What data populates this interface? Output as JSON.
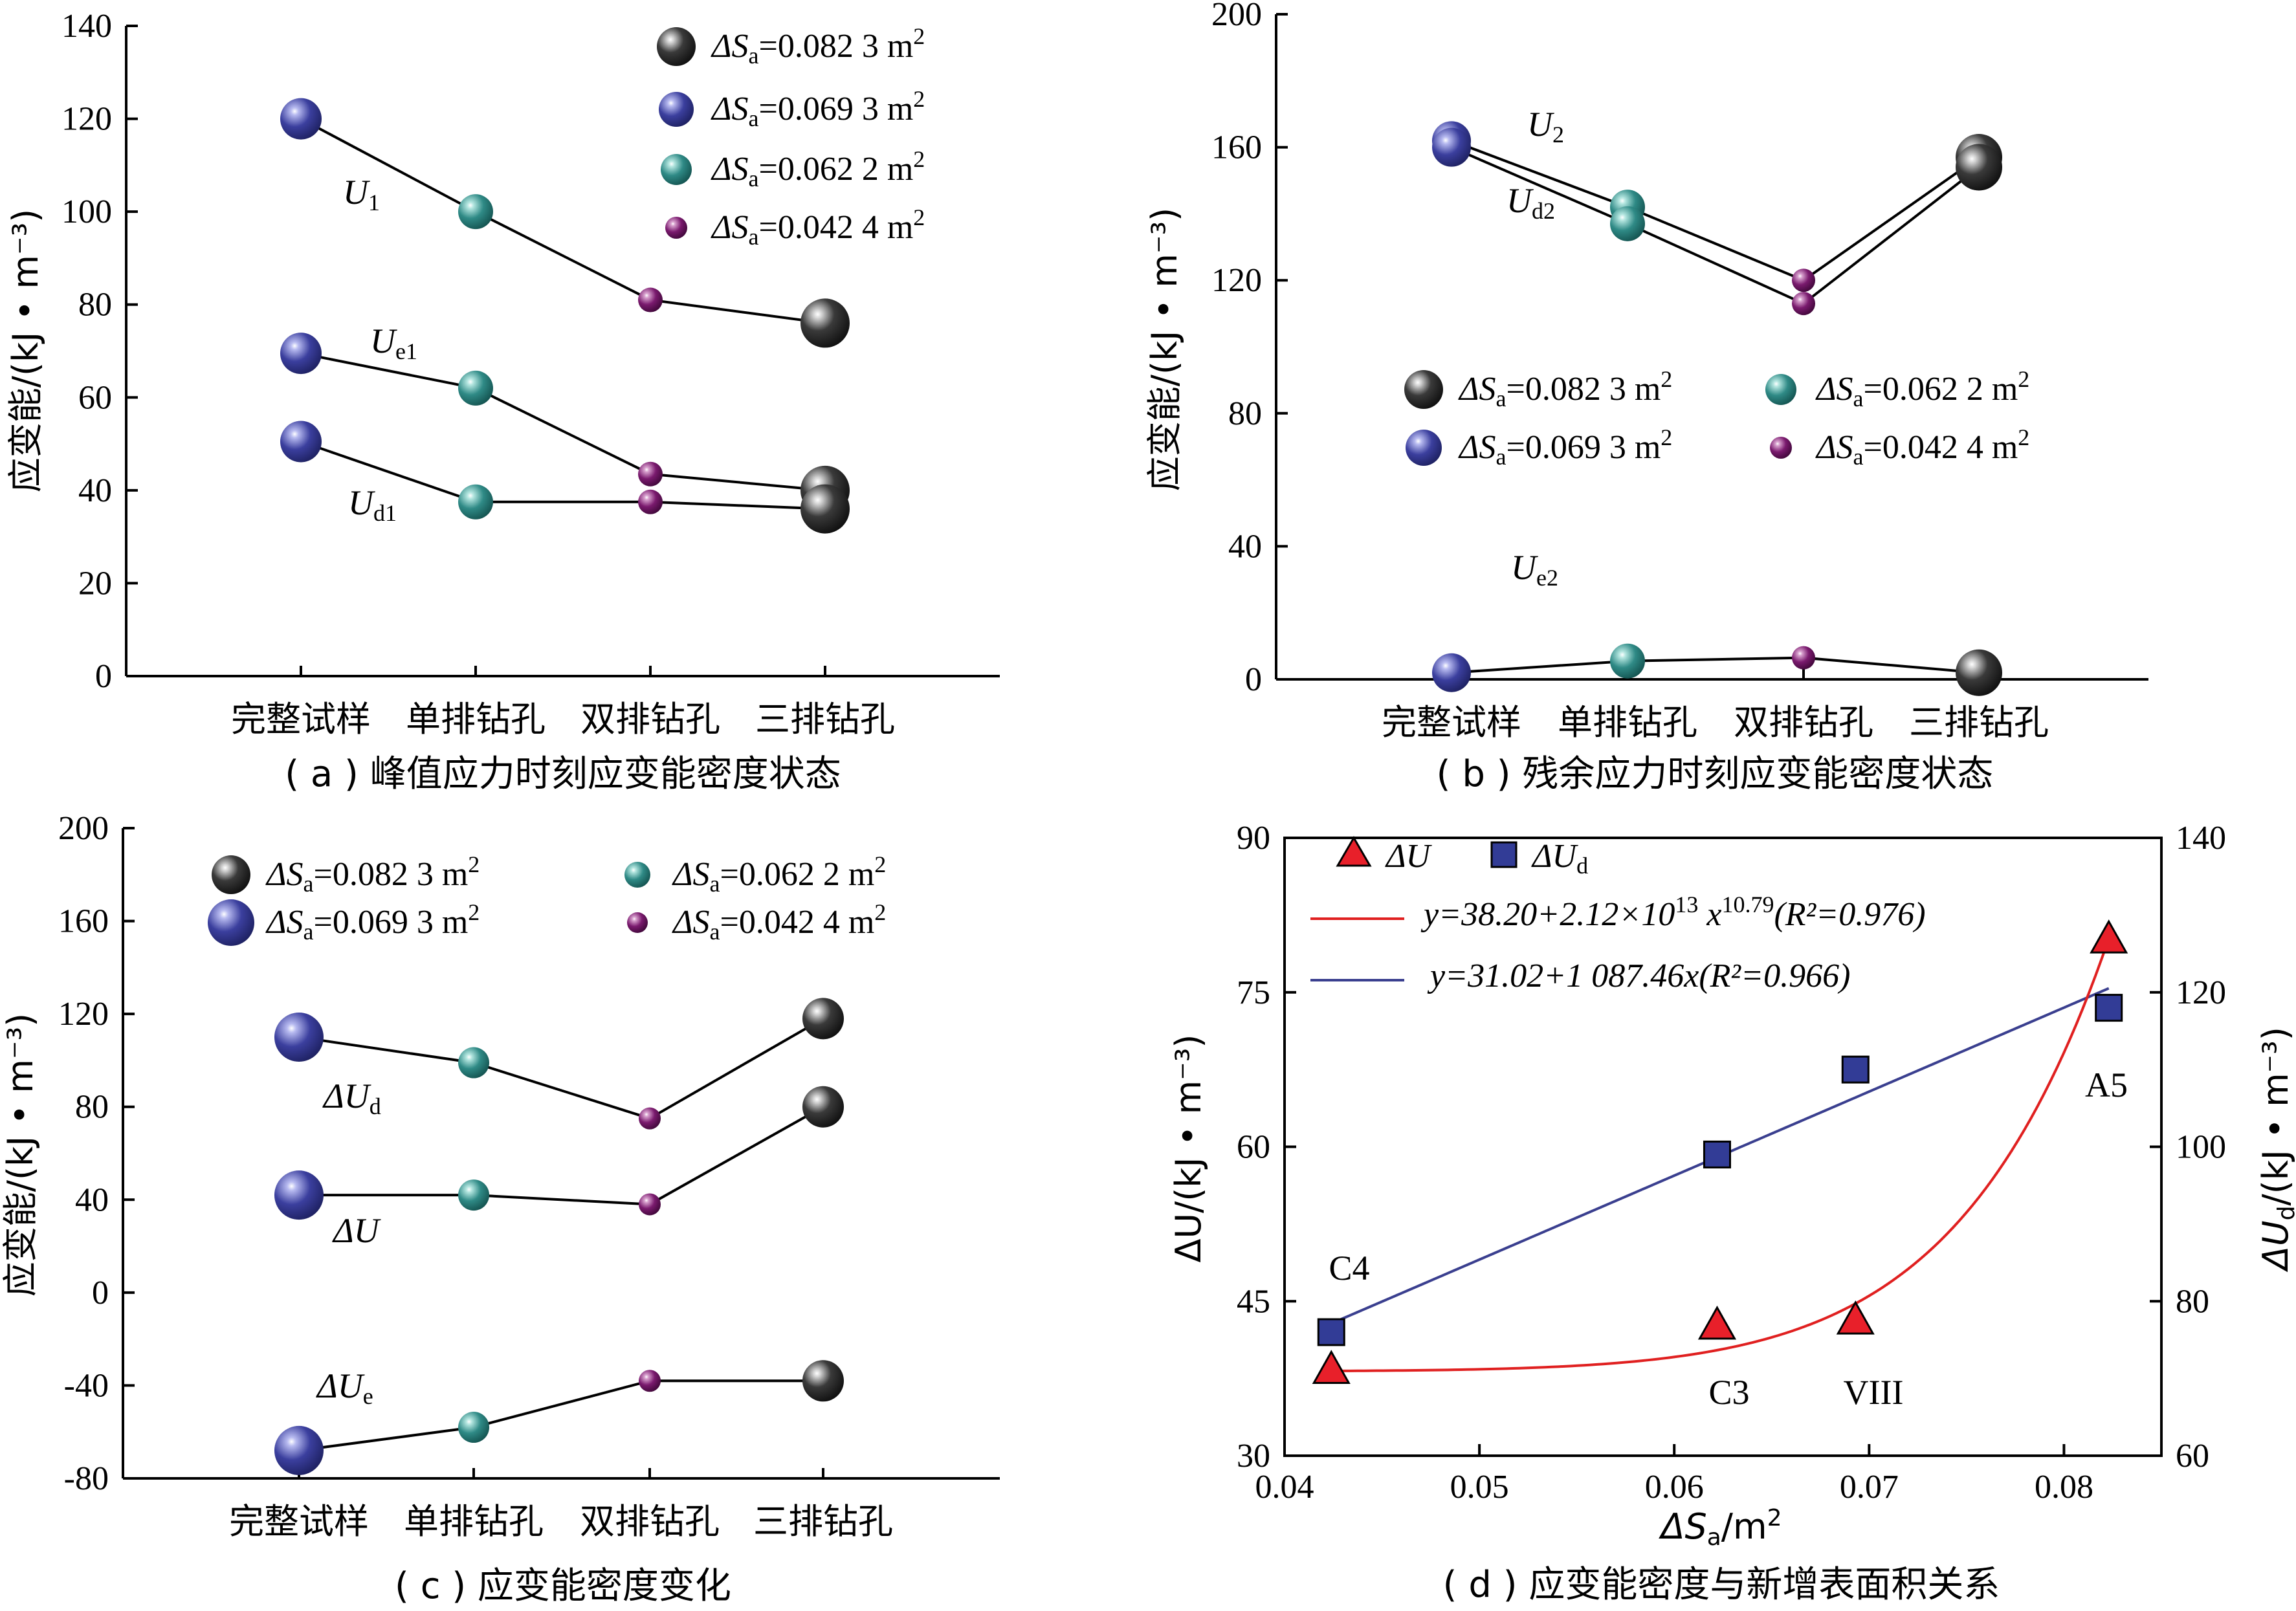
{
  "colors": {
    "dark": "#3a3a3a",
    "blue": "#3b3f9e",
    "teal": "#2f8a86",
    "purple": "#7a1a6e",
    "fit_red": "#e02020",
    "fit_blue": "#3a3f8f",
    "tri_red": "#e8202a",
    "sq_blue": "#323c96"
  },
  "legend_sizes": {
    "0.082 3": "large",
    "0.069 3": "medium-large",
    "0.062 2": "medium",
    "0.042 4": "small"
  },
  "chart_data": [
    {
      "id": "a",
      "type": "line",
      "caption": "( a ) 峰值应力时刻应变能密度状态",
      "ylabel": "应变能/(kJ • m⁻³)",
      "ylim": [
        0,
        140
      ],
      "yticks": [
        "0",
        "20",
        "40",
        "60",
        "80",
        "100",
        "120",
        "140"
      ],
      "categories": [
        "完整试样",
        "单排钻孔",
        "双排钻孔",
        "三排钻孔"
      ],
      "legend": [
        {
          "sym": "ΔS",
          "sub": "a",
          "text": "=0.082 3 m",
          "sup": "2",
          "key": "dark"
        },
        {
          "sym": "ΔS",
          "sub": "a",
          "text": "=0.069 3 m",
          "sup": "2",
          "key": "blue"
        },
        {
          "sym": "ΔS",
          "sub": "a",
          "text": "=0.062 2 m",
          "sup": "2",
          "key": "teal"
        },
        {
          "sym": "ΔS",
          "sub": "a",
          "text": "=0.042 4 m",
          "sup": "2",
          "key": "purple"
        }
      ],
      "series": [
        {
          "label": "U",
          "sub": "1",
          "values": [
            120,
            100,
            81,
            76
          ]
        },
        {
          "label": "U",
          "sub": "e1",
          "values": [
            69.5,
            62,
            43.5,
            40
          ]
        },
        {
          "label": "U",
          "sub": "d1",
          "values": [
            50.5,
            37.5,
            37.5,
            36
          ]
        }
      ]
    },
    {
      "id": "b",
      "type": "line",
      "caption": "( b ) 残余应力时刻应变能密度状态",
      "ylabel": "应变能/(kJ • m⁻³)",
      "ylim": [
        0,
        200
      ],
      "yticks": [
        "0",
        "40",
        "80",
        "120",
        "160",
        "200"
      ],
      "categories": [
        "完整试样",
        "单排钻孔",
        "双排钻孔",
        "三排钻孔"
      ],
      "legend": [
        {
          "sym": "ΔS",
          "sub": "a",
          "text": "=0.082 3 m",
          "sup": "2",
          "key": "dark"
        },
        {
          "sym": "ΔS",
          "sub": "a",
          "text": "=0.062 2 m",
          "sup": "2",
          "key": "teal"
        },
        {
          "sym": "ΔS",
          "sub": "a",
          "text": "=0.069 3 m",
          "sup": "2",
          "key": "blue"
        },
        {
          "sym": "ΔS",
          "sub": "a",
          "text": "=0.042 4 m",
          "sup": "2",
          "key": "purple"
        }
      ],
      "series": [
        {
          "label": "U",
          "sub": "2",
          "values": [
            162,
            142,
            120,
            157
          ]
        },
        {
          "label": "U",
          "sub": "d2",
          "values": [
            160,
            137,
            113,
            154
          ]
        },
        {
          "label": "U",
          "sub": "e2",
          "values": [
            2,
            5.5,
            6.5,
            2
          ]
        }
      ]
    },
    {
      "id": "c",
      "type": "line",
      "caption": "( c ) 应变能密度变化",
      "ylabel": "应变能/(kJ • m⁻³)",
      "ylim": [
        -80,
        200
      ],
      "yticks": [
        "-80",
        "-40",
        "0",
        "40",
        "80",
        "120",
        "160",
        "200"
      ],
      "categories": [
        "完整试样",
        "单排钻孔",
        "双排钻孔",
        "三排钻孔"
      ],
      "legend": [
        {
          "sym": "ΔS",
          "sub": "a",
          "text": "=0.082 3 m",
          "sup": "2",
          "key": "dark"
        },
        {
          "sym": "ΔS",
          "sub": "a",
          "text": "=0.062 2 m",
          "sup": "2",
          "key": "teal"
        },
        {
          "sym": "ΔS",
          "sub": "a",
          "text": "=0.069 3 m",
          "sup": "2",
          "key": "blue"
        },
        {
          "sym": "ΔS",
          "sub": "a",
          "text": "=0.042 4 m",
          "sup": "2",
          "key": "purple"
        }
      ],
      "series": [
        {
          "label": "ΔU",
          "sub": "d",
          "values": [
            110,
            99,
            75,
            118
          ]
        },
        {
          "label": "ΔU",
          "sub": "",
          "values": [
            42,
            42,
            38,
            80
          ]
        },
        {
          "label": "ΔU",
          "sub": "e",
          "values": [
            -68,
            -58,
            -38,
            -38
          ]
        }
      ]
    },
    {
      "id": "d",
      "type": "scatter",
      "caption": "( d ) 应变能密度与新增表面积关系",
      "xlabel": "ΔS",
      "xlabel_sub": "a",
      "xlabel_unit": "/m",
      "xlabel_sup": "2",
      "xlim": [
        0.04,
        0.085
      ],
      "xticks": [
        "0.04",
        "0.05",
        "0.06",
        "0.07",
        "0.08"
      ],
      "ylabel_left": "ΔU/(kJ • m⁻³)",
      "ylim_left": [
        30,
        90
      ],
      "yticks_left": [
        "30",
        "45",
        "60",
        "75",
        "90"
      ],
      "ylabel_right": "ΔU",
      "ylabel_right_sub": "d",
      "ylabel_right_unit": "/(kJ • m⁻³)",
      "ylim_right": [
        60,
        140
      ],
      "yticks_right": [
        "60",
        "80",
        "100",
        "120",
        "140"
      ],
      "legend": [
        {
          "label": "ΔU",
          "marker": "triangle"
        },
        {
          "label": "ΔU",
          "sub": "d",
          "marker": "square"
        }
      ],
      "fits": [
        {
          "text": "y=38.20+2.12×10",
          "sup": "13",
          "tail": " x",
          "tail_sup": "10.79",
          "r2": "(R²=0.976)",
          "color_key": "fit_red"
        },
        {
          "text": "y=31.02+1 087.46x",
          "r2": "(R²=0.966)",
          "color_key": "fit_blue"
        }
      ],
      "series": [
        {
          "name": "ΔU",
          "marker": "triangle",
          "axis": "left",
          "x": [
            0.0424,
            0.0622,
            0.0693,
            0.0823
          ],
          "y": [
            38.2,
            42.5,
            43,
            80
          ]
        },
        {
          "name": "ΔU_d",
          "marker": "square",
          "axis": "right",
          "x": [
            0.0424,
            0.0622,
            0.0693,
            0.0823
          ],
          "y": [
            76,
            99,
            110,
            118
          ]
        }
      ],
      "point_labels": [
        "C4",
        "C3",
        "VIII",
        "A5"
      ]
    }
  ]
}
